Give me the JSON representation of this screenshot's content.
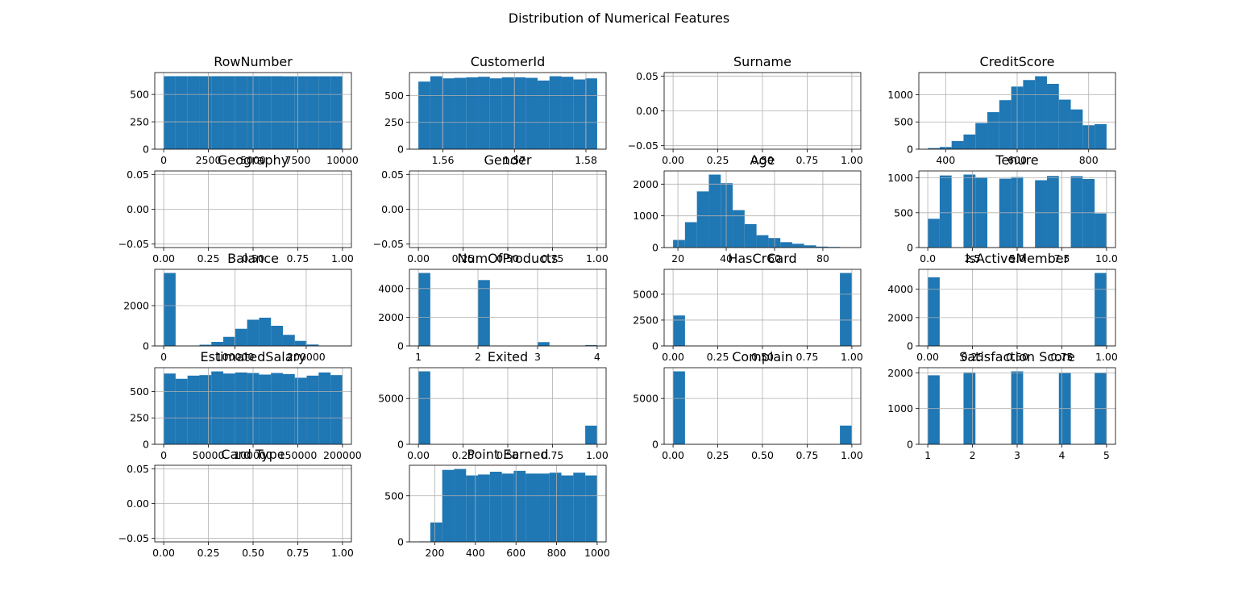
{
  "title": "Distribution of Numerical Features",
  "chart_data": [
    {
      "type": "histogram",
      "title": "RowNumber",
      "color": "#1f77b4",
      "grid": true,
      "bins": [
        1,
        667.6,
        1334.2,
        2000.8,
        2667.4,
        3334,
        4000.6,
        4667.2,
        5333.8,
        6000.4,
        6667,
        7333.6,
        8000.2,
        8666.8,
        9333.4,
        10000
      ],
      "counts": [
        667,
        667,
        667,
        667,
        667,
        667,
        667,
        667,
        667,
        667,
        666,
        666,
        666,
        666,
        666
      ],
      "xlim": [
        -499,
        10500
      ],
      "ylim": [
        0,
        700
      ],
      "xticks": [
        0,
        2500,
        5000,
        7500,
        10000
      ],
      "yticks": [
        0,
        250,
        500
      ]
    },
    {
      "type": "histogram",
      "title": "CustomerId",
      "color": "#1f77b4",
      "grid": true,
      "bins": [
        15565701,
        15582367,
        15599033,
        15615698,
        15632364,
        15649030,
        15665696,
        15682361,
        15699027,
        15715693,
        15732359,
        15749024,
        15765690,
        15782356,
        15799022,
        15815690
      ],
      "counts": [
        630,
        680,
        660,
        665,
        670,
        675,
        660,
        670,
        670,
        665,
        640,
        680,
        675,
        650,
        660
      ],
      "xlim": [
        15553202,
        15828189
      ],
      "ylim": [
        0,
        714
      ],
      "xticks": [
        {
          "value": 15600000,
          "label": "1.56"
        },
        {
          "value": 15700000,
          "label": "1.57"
        },
        {
          "value": 15800000,
          "label": "1.58"
        }
      ],
      "yticks": [
        0,
        250,
        500
      ]
    },
    {
      "type": "histogram",
      "title": "Surname",
      "color": "#1f77b4",
      "grid": true,
      "xlim": [
        -0.05,
        1.05
      ],
      "ylim": [
        -0.055,
        0.055
      ],
      "xticks": [
        {
          "value": 0,
          "label": "0.00"
        },
        0.25,
        {
          "value": 0.5,
          "label": "0.50"
        },
        0.75,
        {
          "value": 1,
          "label": "1.00"
        }
      ],
      "yticks": [
        {
          "value": -0.05,
          "label": "−0.05"
        },
        {
          "value": 0,
          "label": "0.00"
        },
        0.05
      ]
    },
    {
      "type": "histogram",
      "title": "CreditScore",
      "color": "#1f77b4",
      "grid": true,
      "bins": [
        350,
        383.33,
        416.67,
        450,
        483.33,
        516.67,
        550,
        583.33,
        616.67,
        650,
        683.33,
        716.67,
        750,
        783.33,
        816.67,
        850
      ],
      "counts": [
        20,
        40,
        150,
        270,
        480,
        680,
        900,
        1150,
        1270,
        1340,
        1200,
        910,
        730,
        440,
        460
      ],
      "xlim": [
        325,
        875
      ],
      "ylim": [
        0,
        1407
      ],
      "xticks": [
        400,
        600,
        800
      ],
      "yticks": [
        0,
        500,
        1000
      ]
    },
    {
      "type": "histogram",
      "title": "Geography",
      "color": "#1f77b4",
      "grid": true,
      "xlim": [
        -0.05,
        1.05
      ],
      "ylim": [
        -0.055,
        0.055
      ],
      "xticks": [
        {
          "value": 0,
          "label": "0.00"
        },
        0.25,
        {
          "value": 0.5,
          "label": "0.50"
        },
        0.75,
        {
          "value": 1,
          "label": "1.00"
        }
      ],
      "yticks": [
        {
          "value": -0.05,
          "label": "−0.05"
        },
        {
          "value": 0,
          "label": "0.00"
        },
        0.05
      ]
    },
    {
      "type": "histogram",
      "title": "Gender",
      "color": "#1f77b4",
      "grid": true,
      "xlim": [
        -0.05,
        1.05
      ],
      "ylim": [
        -0.055,
        0.055
      ],
      "xticks": [
        {
          "value": 0,
          "label": "0.00"
        },
        0.25,
        {
          "value": 0.5,
          "label": "0.50"
        },
        0.75,
        {
          "value": 1,
          "label": "1.00"
        }
      ],
      "yticks": [
        {
          "value": -0.05,
          "label": "−0.05"
        },
        {
          "value": 0,
          "label": "0.00"
        },
        0.05
      ]
    },
    {
      "type": "histogram",
      "title": "Age",
      "color": "#1f77b4",
      "grid": true,
      "bins": [
        18,
        22.93,
        27.87,
        32.8,
        37.73,
        42.67,
        47.6,
        52.53,
        57.47,
        62.4,
        67.33,
        72.27,
        77.2,
        82.13,
        87.07,
        92
      ],
      "counts": [
        240,
        800,
        1770,
        2300,
        2030,
        1180,
        740,
        390,
        300,
        170,
        120,
        70,
        30,
        20,
        10
      ],
      "xlim": [
        14.3,
        95.7
      ],
      "ylim": [
        0,
        2415
      ],
      "xticks": [
        20,
        40,
        60,
        80
      ],
      "yticks": [
        0,
        1000,
        2000
      ]
    },
    {
      "type": "histogram",
      "title": "Tenure",
      "color": "#1f77b4",
      "grid": true,
      "bins": [
        0,
        0.667,
        1.333,
        2,
        2.667,
        3.333,
        4,
        4.667,
        5.333,
        6,
        6.667,
        7.333,
        8,
        8.667,
        9.333,
        10
      ],
      "counts": [
        413,
        1035,
        0,
        1048,
        1009,
        0,
        989,
        1012,
        0,
        967,
        1028,
        0,
        1025,
        984,
        490
      ],
      "xlim": [
        -0.5,
        10.5
      ],
      "ylim": [
        0,
        1100
      ],
      "xticks": [
        {
          "value": 0,
          "label": "0.0"
        },
        2.5,
        {
          "value": 5,
          "label": "5.0"
        },
        7.5,
        {
          "value": 10,
          "label": "10.0"
        }
      ],
      "yticks": [
        0,
        500,
        1000
      ]
    },
    {
      "type": "histogram",
      "title": "Balance",
      "color": "#1f77b4",
      "grid": true,
      "bins": [
        0,
        16726.54,
        33453.08,
        50179.62,
        66906.16,
        83632.7,
        100359.24,
        117085.78,
        133812.32,
        150538.85,
        167265.39,
        183991.93,
        200718.47,
        217445.01,
        234171.55,
        250898.09
      ],
      "counts": [
        3617,
        0,
        10,
        60,
        200,
        450,
        850,
        1300,
        1400,
        1000,
        550,
        250,
        70,
        10,
        2
      ],
      "xlim": [
        -12545,
        263443
      ],
      "ylim": [
        0,
        3798
      ],
      "xticks": [
        0,
        100000,
        200000
      ],
      "yticks": [
        0,
        2000
      ]
    },
    {
      "type": "histogram",
      "title": "NumOfProducts",
      "color": "#1f77b4",
      "grid": true,
      "bins": [
        1,
        1.2,
        1.4,
        1.6,
        1.8,
        2,
        2.2,
        2.4,
        2.6,
        2.8,
        3,
        3.2,
        3.4,
        3.6,
        3.8,
        4
      ],
      "counts": [
        5084,
        0,
        0,
        0,
        0,
        4590,
        0,
        0,
        0,
        0,
        266,
        0,
        0,
        0,
        60
      ],
      "xlim": [
        0.85,
        4.15
      ],
      "ylim": [
        0,
        5338
      ],
      "xticks": [
        1,
        2,
        3,
        4
      ],
      "yticks": [
        0,
        2000,
        4000
      ]
    },
    {
      "type": "histogram",
      "title": "HasCrCard",
      "color": "#1f77b4",
      "grid": true,
      "bins": [
        0,
        0.0667,
        0.1333,
        0.2,
        0.2667,
        0.3333,
        0.4,
        0.4667,
        0.5333,
        0.6,
        0.6667,
        0.7333,
        0.8,
        0.8667,
        0.9333,
        1
      ],
      "counts": [
        2945,
        0,
        0,
        0,
        0,
        0,
        0,
        0,
        0,
        0,
        0,
        0,
        0,
        0,
        7055
      ],
      "xlim": [
        -0.05,
        1.05
      ],
      "ylim": [
        0,
        7408
      ],
      "xticks": [
        {
          "value": 0,
          "label": "0.00"
        },
        0.25,
        {
          "value": 0.5,
          "label": "0.50"
        },
        0.75,
        {
          "value": 1,
          "label": "1.00"
        }
      ],
      "yticks": [
        0,
        2500,
        5000
      ]
    },
    {
      "type": "histogram",
      "title": "IsActiveMember",
      "color": "#1f77b4",
      "grid": true,
      "bins": [
        0,
        0.0667,
        0.1333,
        0.2,
        0.2667,
        0.3333,
        0.4,
        0.4667,
        0.5333,
        0.6,
        0.6667,
        0.7333,
        0.8,
        0.8667,
        0.9333,
        1
      ],
      "counts": [
        4849,
        0,
        0,
        0,
        0,
        0,
        0,
        0,
        0,
        0,
        0,
        0,
        0,
        0,
        5151
      ],
      "xlim": [
        -0.05,
        1.05
      ],
      "ylim": [
        0,
        5409
      ],
      "xticks": [
        {
          "value": 0,
          "label": "0.00"
        },
        0.25,
        {
          "value": 0.5,
          "label": "0.50"
        },
        0.75,
        {
          "value": 1,
          "label": "1.00"
        }
      ],
      "yticks": [
        0,
        2000,
        4000
      ]
    },
    {
      "type": "histogram",
      "title": "EstimatedSalary",
      "color": "#1f77b4",
      "grid": true,
      "bins": [
        11.58,
        13343.64,
        26675.7,
        40007.76,
        53339.82,
        66671.88,
        80003.94,
        93336.0,
        106668.06,
        120000.12,
        133332.18,
        146664.24,
        159996.3,
        173328.36,
        186660.42,
        199992.48
      ],
      "counts": [
        670,
        620,
        650,
        655,
        690,
        670,
        680,
        675,
        660,
        675,
        665,
        630,
        650,
        680,
        655
      ],
      "xlim": [
        -9987.5,
        209991.5
      ],
      "ylim": [
        0,
        725
      ],
      "xticks": [
        0,
        50000,
        100000,
        150000,
        200000
      ],
      "yticks": [
        0,
        250,
        500
      ]
    },
    {
      "type": "histogram",
      "title": "Exited",
      "color": "#1f77b4",
      "grid": true,
      "bins": [
        0,
        0.0667,
        0.1333,
        0.2,
        0.2667,
        0.3333,
        0.4,
        0.4667,
        0.5333,
        0.6,
        0.6667,
        0.7333,
        0.8,
        0.8667,
        0.9333,
        1
      ],
      "counts": [
        7962,
        0,
        0,
        0,
        0,
        0,
        0,
        0,
        0,
        0,
        0,
        0,
        0,
        0,
        2038
      ],
      "xlim": [
        -0.05,
        1.05
      ],
      "ylim": [
        0,
        8360
      ],
      "xticks": [
        {
          "value": 0,
          "label": "0.00"
        },
        0.25,
        {
          "value": 0.5,
          "label": "0.50"
        },
        0.75,
        {
          "value": 1,
          "label": "1.00"
        }
      ],
      "yticks": [
        0,
        5000
      ]
    },
    {
      "type": "histogram",
      "title": "Complain",
      "color": "#1f77b4",
      "grid": true,
      "bins": [
        0,
        0.0667,
        0.1333,
        0.2,
        0.2667,
        0.3333,
        0.4,
        0.4667,
        0.5333,
        0.6,
        0.6667,
        0.7333,
        0.8,
        0.8667,
        0.9333,
        1
      ],
      "counts": [
        7956,
        0,
        0,
        0,
        0,
        0,
        0,
        0,
        0,
        0,
        0,
        0,
        0,
        0,
        2044
      ],
      "xlim": [
        -0.05,
        1.05
      ],
      "ylim": [
        0,
        8354
      ],
      "xticks": [
        {
          "value": 0,
          "label": "0.00"
        },
        0.25,
        {
          "value": 0.5,
          "label": "0.50"
        },
        0.75,
        {
          "value": 1,
          "label": "1.00"
        }
      ],
      "yticks": [
        0,
        5000
      ]
    },
    {
      "type": "histogram",
      "title": "Satisfaction Score",
      "color": "#1f77b4",
      "grid": true,
      "bins": [
        1,
        1.2667,
        1.5333,
        1.8,
        2.0667,
        2.3333,
        2.6,
        2.8667,
        3.1333,
        3.4,
        3.6667,
        3.9333,
        4.2,
        4.4667,
        4.7333,
        5
      ],
      "counts": [
        1932,
        0,
        0,
        2014,
        0,
        0,
        0,
        2042,
        0,
        0,
        0,
        2008,
        0,
        0,
        2004
      ],
      "xlim": [
        0.8,
        5.2
      ],
      "ylim": [
        0,
        2144
      ],
      "xticks": [
        1,
        2,
        3,
        4,
        5
      ],
      "yticks": [
        0,
        1000,
        2000
      ]
    },
    {
      "type": "histogram",
      "title": "Card Type",
      "color": "#1f77b4",
      "grid": true,
      "xlim": [
        -0.05,
        1.05
      ],
      "ylim": [
        -0.055,
        0.055
      ],
      "xticks": [
        {
          "value": 0,
          "label": "0.00"
        },
        0.25,
        {
          "value": 0.5,
          "label": "0.50"
        },
        0.75,
        {
          "value": 1,
          "label": "1.00"
        }
      ],
      "yticks": [
        {
          "value": -0.05,
          "label": "−0.05"
        },
        {
          "value": 0,
          "label": "0.00"
        },
        0.05
      ]
    },
    {
      "type": "histogram",
      "title": "Point Earned",
      "color": "#1f77b4",
      "grid": true,
      "bins": [
        119,
        177.73,
        236.47,
        295.2,
        353.93,
        412.67,
        471.4,
        530.13,
        588.87,
        647.6,
        706.33,
        765.07,
        823.8,
        882.53,
        941.27,
        1000
      ],
      "counts": [
        5,
        210,
        780,
        790,
        720,
        730,
        760,
        740,
        770,
        740,
        740,
        750,
        720,
        750,
        720
      ],
      "xlim": [
        74.95,
        1044.05
      ],
      "ylim": [
        0,
        830
      ],
      "xticks": [
        200,
        400,
        600,
        800,
        1000
      ],
      "yticks": [
        0,
        500
      ]
    }
  ]
}
